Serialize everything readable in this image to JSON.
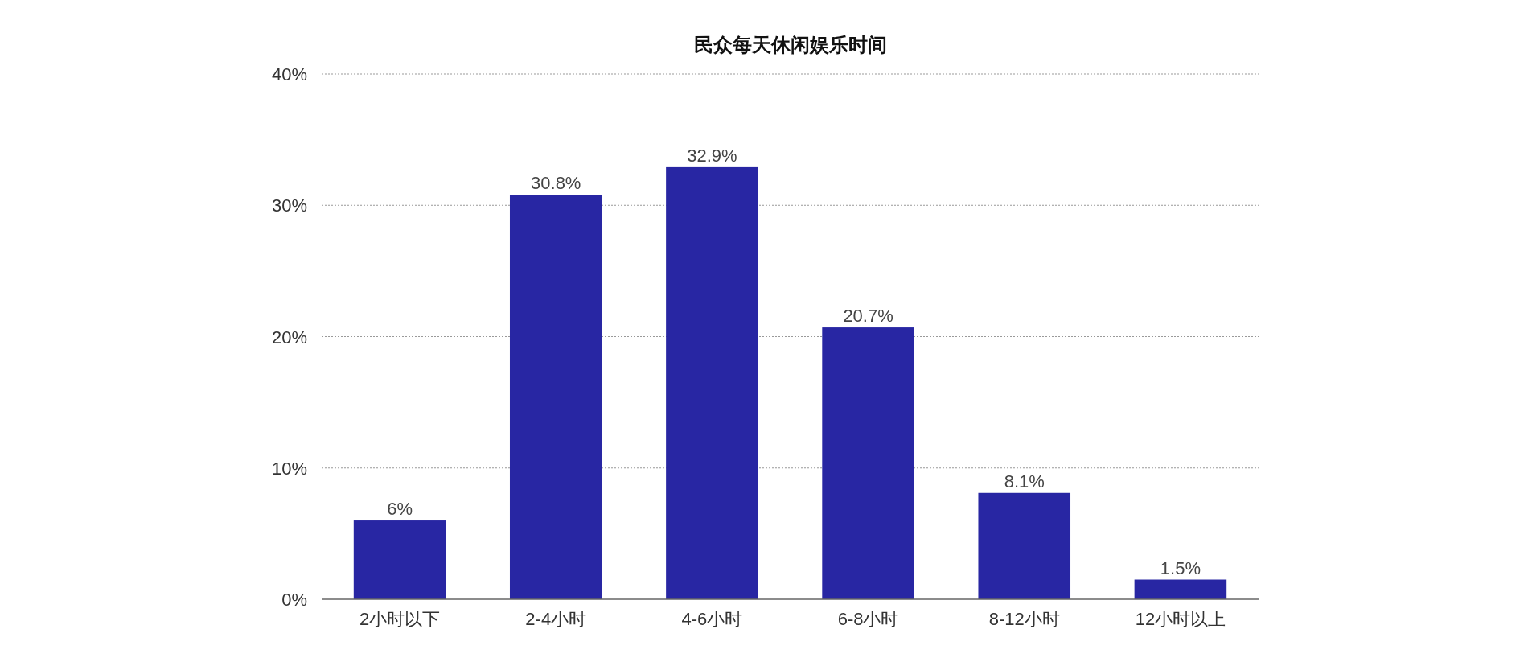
{
  "chart_data": {
    "type": "bar",
    "title": "民众每天休闲娱乐时间",
    "categories": [
      "2小时以下",
      "2-4小时",
      "4-6小时",
      "6-8小时",
      "8-12小时",
      "12小时以上"
    ],
    "values": [
      6,
      30.8,
      32.9,
      20.7,
      8.1,
      1.5
    ],
    "value_labels": [
      "6%",
      "30.8%",
      "32.9%",
      "20.7%",
      "8.1%",
      "1.5%"
    ],
    "color": "#2826a3",
    "ylim": [
      0,
      40
    ],
    "yticks": [
      {
        "value": 0,
        "label": "0%"
      },
      {
        "value": 10,
        "label": "10%"
      },
      {
        "value": 20,
        "label": "20%"
      },
      {
        "value": 30,
        "label": "30%"
      },
      {
        "value": 40,
        "label": "40%"
      }
    ],
    "grid": "y"
  }
}
